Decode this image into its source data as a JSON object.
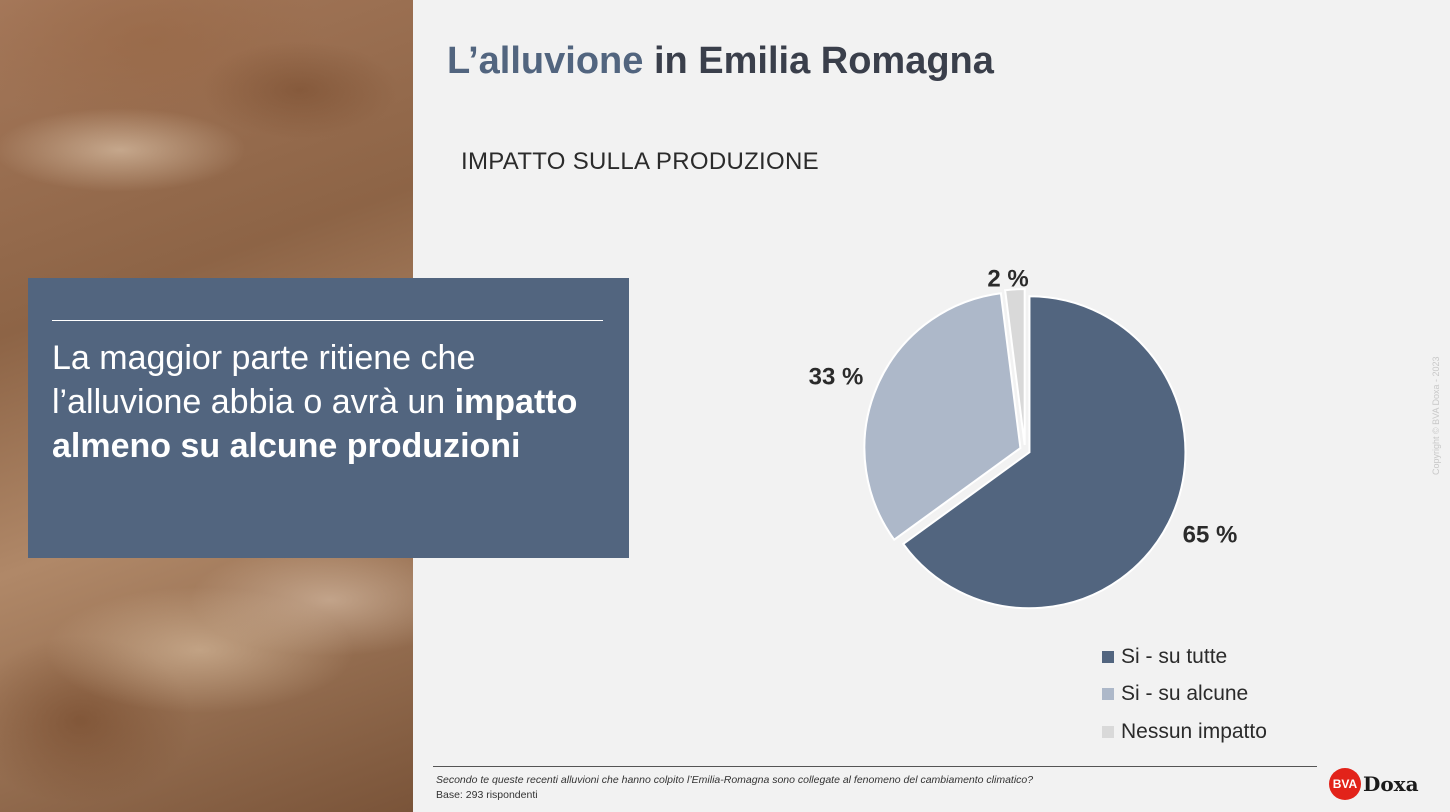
{
  "slide": {
    "title_accent": "L’alluvione",
    "title_rest": " in Emilia Romagna",
    "subtitle": "IMPATTO SULLA PRODUZIONE",
    "callout": {
      "text_regular": "La maggior parte ritiene che l’alluvione abbia o avrà un ",
      "text_bold": "impatto almeno su alcune produzioni"
    },
    "copyright": "Copyright © BVA Doxa - 2023",
    "footer": {
      "question": "Secondo te queste recenti alluvioni che hanno colpito l’Emilia-Romagna sono collegate al fenomeno del cambiamento climatico?",
      "base": "Base: 293 rispondenti"
    },
    "logo": {
      "mark": "BVA",
      "word": "Doxa"
    }
  },
  "chart_data": {
    "type": "pie",
    "categories": [
      "Si - su tutte",
      "Si - su alcune",
      "Nessun impatto"
    ],
    "values": [
      65,
      33,
      2
    ],
    "labels": [
      "65 %",
      "33 %",
      "2 %"
    ],
    "colors": [
      "#52657f",
      "#adb8c9",
      "#d9d9d9"
    ],
    "legend_position": "bottom-right"
  }
}
